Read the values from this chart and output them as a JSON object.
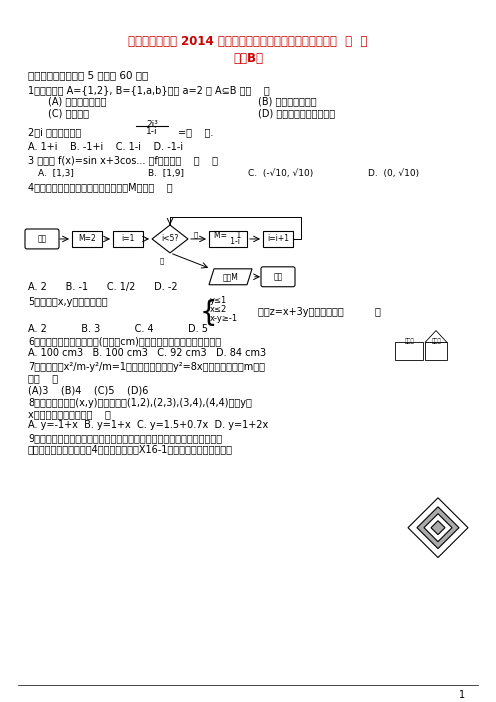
{
  "title_line1": "甘肃省天水一中 2014 届高三数学下学期第五次模拟考试试题  文  新",
  "title_line2": "人教B版",
  "title_color": "#cc0000",
  "bg_color": "#ffffff",
  "section1": "一、选择题（每小题 5 分，共 60 分）",
  "q1": "1．已知集合 A={1,2}, B={1,a,b}，则 a=2 是 A⊆B 的（    ）",
  "q1a": "(A) 充分不必要条件",
  "q1b": "(B) 必要不充分条件",
  "q1c": "(C) 充要条件",
  "q1d": "(D) 既不充分也不必要条件",
  "q2_pre": "2．i 是虚数单位，",
  "q2frac": "2i³",
  "q2frac_denom": "1-i",
  "q2end": "=（    ）.",
  "q2a": "A. 1+i    B. -1+i    C. 1-i    D. -1-i",
  "q3": "3 若函数 f(x)=sin x+3cos... 则f的值域是    （    ）",
  "q3a": "A.  [1,3]",
  "q3b": "B.  [1,9]",
  "q3c": "C.  (-√10, √10)",
  "q3d": "D.  (0, √10)",
  "q4": "4．执行如图所示的程序框图，输出的M值是（    ）",
  "q4a": "A. 2      B. -1      C. 1/2      D. -2",
  "q5_pre": "5．若变量x,y满足约束条件",
  "q5_c1": "y≤1",
  "q5_c2": "x≤2",
  "q5_c3": "x-y≥-1",
  "q5_post": "，则z=x+3y的最大值是（          ）",
  "q5a": "A. 2           B. 3           C. 4           D. 5",
  "q6": "6．已知某几何体的三视图(单位：cm)如图所示，则该几何体的体积是",
  "q6a": "A. 100 cm3   B. 100 cm3   C. 92 cm3   D. 84 cm3",
  "q7": "7．若双曲线x²/m-y²/m=1的左焦点与抛物线y²=8x的焦点重合，则m的值",
  "q7a": "为（    ）",
  "q7b": "(A)3    (B)4    (C)5    (D)6",
  "q8": "8．实验测得四组(x,y)的值分别为(1,2),(2,3),(3,4),(4,4)，则y与",
  "q8a": "x间的线性回归方程是（    ）",
  "q8b": "A. y=-1+x  B. y=1+x  C. y=1.5+0.7x  D. y=1+2x",
  "q9": "9．任意画一个正方形，再将这个正方形各边的中点相连到第二个正方形，",
  "q9a": "依此类推，这样一共画了4个正方形，如图X16-1所示，若问图形中阴影按"
}
